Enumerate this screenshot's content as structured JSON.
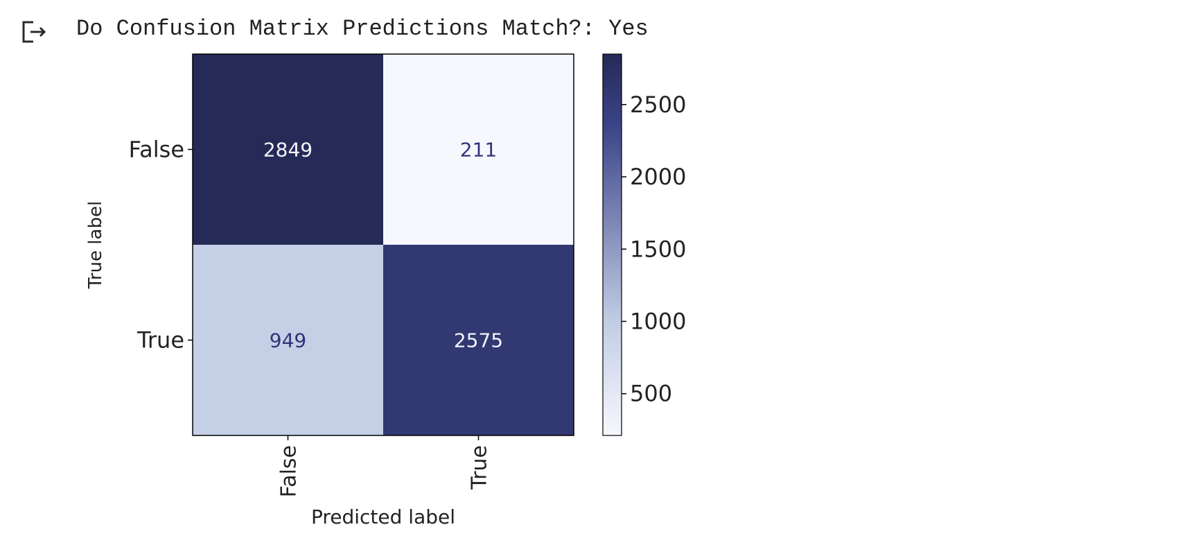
{
  "output_cell": {
    "icon": "output-arrow-icon",
    "text": "Do Confusion Matrix Predictions Match?: Yes"
  },
  "chart_data": {
    "type": "heatmap",
    "title": "",
    "xlabel": "Predicted label",
    "ylabel": "True label",
    "x_categories": [
      "False",
      "True"
    ],
    "y_categories": [
      "False",
      "True"
    ],
    "matrix": [
      [
        2849,
        211
      ],
      [
        949,
        2575
      ]
    ],
    "colormap": "Blues-like navy",
    "colormap_stops": [
      "#f7f8fe",
      "#c1cce4",
      "#3a4287",
      "#262a56"
    ],
    "colorbar": {
      "min": 211,
      "max": 2849,
      "ticks": [
        500,
        1000,
        1500,
        2000,
        2500
      ]
    },
    "grid": false
  }
}
